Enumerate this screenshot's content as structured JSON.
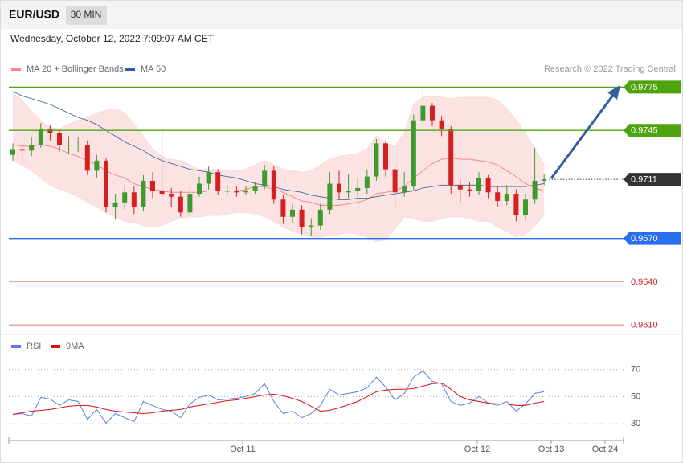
{
  "header": {
    "symbol": "EUR/USD",
    "timeframe": "30 MIN",
    "timestamp": "Wednesday, October 12, 2022 7:09:07 AM CET"
  },
  "chart_data": [
    {
      "type": "candlestick",
      "credit": "Research © 2022 Trading Central",
      "ylim": [
        0.9604,
        0.9802
      ],
      "up_color": "#3c9a2e",
      "down_color": "#d42020",
      "band_color": "#fbd9d9",
      "open": [
        0.9728,
        0.9732,
        0.9731,
        0.9735,
        0.9746,
        0.9743,
        0.9735,
        0.9735,
        0.9735,
        0.9717,
        0.9724,
        0.9692,
        0.9695,
        0.9702,
        0.9692,
        0.971,
        0.9703,
        0.9701,
        0.9699,
        0.9688,
        0.9701,
        0.9708,
        0.9716,
        0.9703,
        0.9703,
        0.9702,
        0.9703,
        0.9706,
        0.9717,
        0.9697,
        0.9685,
        0.969,
        0.9678,
        0.9679,
        0.969,
        0.9708,
        0.9702,
        0.9703,
        0.9705,
        0.9713,
        0.9736,
        0.9718,
        0.9702,
        0.9706,
        0.9752,
        0.9762,
        0.9752,
        0.9746,
        0.9707,
        0.9704,
        0.9703,
        0.9712,
        0.9702,
        0.9696,
        0.9701,
        0.9686,
        0.9697,
        0.971
      ],
      "high": [
        0.9736,
        0.9737,
        0.974,
        0.975,
        0.9749,
        0.9746,
        0.9741,
        0.974,
        0.9738,
        0.9728,
        0.9726,
        0.9701,
        0.9707,
        0.9706,
        0.9714,
        0.9716,
        0.9746,
        0.9705,
        0.9703,
        0.9706,
        0.9713,
        0.972,
        0.9718,
        0.9707,
        0.9706,
        0.9706,
        0.9709,
        0.9721,
        0.972,
        0.97,
        0.9694,
        0.9693,
        0.9684,
        0.9694,
        0.9716,
        0.9717,
        0.9715,
        0.9712,
        0.9718,
        0.9739,
        0.9738,
        0.9721,
        0.9716,
        0.9756,
        0.9775,
        0.9764,
        0.9755,
        0.9748,
        0.9711,
        0.9709,
        0.9716,
        0.9714,
        0.9706,
        0.9707,
        0.9704,
        0.9701,
        0.9733,
        0.9715
      ],
      "low": [
        0.9724,
        0.9722,
        0.9727,
        0.9733,
        0.9738,
        0.973,
        0.9729,
        0.973,
        0.9714,
        0.9712,
        0.9688,
        0.9683,
        0.969,
        0.9687,
        0.9689,
        0.9698,
        0.9697,
        0.9692,
        0.9685,
        0.9686,
        0.9699,
        0.9704,
        0.97,
        0.97,
        0.9699,
        0.97,
        0.9701,
        0.9704,
        0.9694,
        0.968,
        0.9681,
        0.9673,
        0.9672,
        0.9676,
        0.9687,
        0.9697,
        0.9698,
        0.9699,
        0.9701,
        0.971,
        0.9713,
        0.9691,
        0.9699,
        0.9703,
        0.9748,
        0.9748,
        0.9741,
        0.9701,
        0.9695,
        0.9699,
        0.97,
        0.9698,
        0.9692,
        0.9693,
        0.9682,
        0.9683,
        0.9694,
        0.9707
      ],
      "close": [
        0.9732,
        0.9731,
        0.9735,
        0.9746,
        0.9743,
        0.9735,
        0.9735,
        0.9735,
        0.9717,
        0.9724,
        0.9692,
        0.9695,
        0.9702,
        0.9692,
        0.971,
        0.9703,
        0.9701,
        0.9699,
        0.9688,
        0.9701,
        0.9708,
        0.9716,
        0.9703,
        0.9703,
        0.9702,
        0.9703,
        0.9706,
        0.9717,
        0.9697,
        0.9685,
        0.969,
        0.9678,
        0.9679,
        0.969,
        0.9708,
        0.9702,
        0.9703,
        0.9705,
        0.9713,
        0.9736,
        0.9718,
        0.9702,
        0.9706,
        0.9752,
        0.9762,
        0.9752,
        0.9746,
        0.9707,
        0.9704,
        0.9703,
        0.9712,
        0.9702,
        0.9696,
        0.9701,
        0.9686,
        0.9697,
        0.971,
        0.9711
      ],
      "series": [
        {
          "name": "MA 20 + Bollinger Bands",
          "color": "#f08a84",
          "values": [
            0.9735,
            0.9734,
            0.9734,
            0.9735,
            0.9734,
            0.9732,
            0.9729,
            0.9727,
            0.9724,
            0.9721,
            0.9717,
            0.9714,
            0.9712,
            0.9708,
            0.9706,
            0.9704,
            0.9703,
            0.9702,
            0.9702,
            0.9702,
            0.9702,
            0.9703,
            0.9703,
            0.9703,
            0.9703,
            0.9704,
            0.9706,
            0.9706,
            0.9704,
            0.9702,
            0.9699,
            0.9696,
            0.9695,
            0.9693,
            0.9693,
            0.9693,
            0.9694,
            0.9695,
            0.9697,
            0.9701,
            0.9702,
            0.9703,
            0.9706,
            0.9712,
            0.9717,
            0.9722,
            0.9725,
            0.9726,
            0.9725,
            0.9725,
            0.9724,
            0.9723,
            0.9721,
            0.9717,
            0.9713,
            0.9708,
            0.9705,
            0.9703
          ],
          "upper": [
            0.9771,
            0.9766,
            0.9758,
            0.9752,
            0.9747,
            0.9746,
            0.9749,
            0.9752,
            0.9754,
            0.9757,
            0.9759,
            0.976,
            0.9757,
            0.9749,
            0.9741,
            0.9732,
            0.9727,
            0.9725,
            0.9724,
            0.9721,
            0.9718,
            0.9718,
            0.9718,
            0.9717,
            0.9717,
            0.9718,
            0.9721,
            0.9724,
            0.9721,
            0.9718,
            0.9717,
            0.9716,
            0.9717,
            0.9721,
            0.9725,
            0.9727,
            0.9728,
            0.9729,
            0.9732,
            0.9741,
            0.9736,
            0.9734,
            0.9743,
            0.9763,
            0.9768,
            0.9769,
            0.9768,
            0.9767,
            0.9768,
            0.9768,
            0.9768,
            0.9768,
            0.9766,
            0.976,
            0.9752,
            0.9743,
            0.9732,
            0.9721
          ],
          "lower": [
            0.9724,
            0.9721,
            0.9717,
            0.9712,
            0.9707,
            0.9704,
            0.9702,
            0.9699,
            0.9695,
            0.9692,
            0.9688,
            0.9685,
            0.9682,
            0.9681,
            0.9679,
            0.9678,
            0.9679,
            0.9682,
            0.9684,
            0.9685,
            0.9685,
            0.9686,
            0.9686,
            0.9687,
            0.9688,
            0.9688,
            0.9687,
            0.9685,
            0.9682,
            0.9678,
            0.9675,
            0.9673,
            0.9671,
            0.9671,
            0.9672,
            0.9673,
            0.9674,
            0.9673,
            0.9671,
            0.9668,
            0.9669,
            0.9677,
            0.9685,
            0.9684,
            0.9682,
            0.9682,
            0.9684,
            0.9685,
            0.9685,
            0.9684,
            0.9682,
            0.9682,
            0.9678,
            0.9675,
            0.9671,
            0.9673,
            0.9679,
            0.9686
          ]
        },
        {
          "name": "MA 50",
          "color": "#2f5f9f",
          "values": [
            0.9772,
            0.9769,
            0.9767,
            0.9765,
            0.9763,
            0.976,
            0.9757,
            0.9754,
            0.9752,
            0.9749,
            0.9745,
            0.9741,
            0.9737,
            0.9734,
            0.9731,
            0.9727,
            0.9724,
            0.9722,
            0.972,
            0.9718,
            0.9717,
            0.9716,
            0.9714,
            0.9713,
            0.9712,
            0.971,
            0.9708,
            0.9707,
            0.9706,
            0.9704,
            0.9703,
            0.9702,
            0.97,
            0.9699,
            0.9698,
            0.9697,
            0.9697,
            0.9698,
            0.9698,
            0.9699,
            0.97,
            0.9701,
            0.9702,
            0.9703,
            0.9705,
            0.9706,
            0.9707,
            0.9707,
            0.9707,
            0.9707,
            0.9707,
            0.9706,
            0.9706,
            0.9706,
            0.9706,
            0.9706,
            0.9707,
            0.9708
          ]
        }
      ],
      "levels": [
        {
          "price": 0.9775,
          "color": "#4ea40f",
          "line": "solid",
          "tag": true
        },
        {
          "price": 0.9745,
          "color": "#4ea40f",
          "line": "solid",
          "tag": true
        },
        {
          "price": 0.9711,
          "color": "#333333",
          "line": "dotted",
          "tag": true
        },
        {
          "price": {
            "value": 0.967,
            "label": "0.9670"
          },
          "color": "#2a6ef0",
          "line": "solid",
          "tag": true
        },
        {
          "price": {
            "value": 0.964,
            "label": "0.9640"
          },
          "color": "#f4a0a0",
          "line": "solid",
          "tag": false
        },
        {
          "price": {
            "value": 0.961,
            "label": "0.9610"
          },
          "color": "#f4a0a0",
          "line": "solid",
          "tag": false
        }
      ]
    },
    {
      "type": "line",
      "ylim": [
        20,
        90
      ],
      "yticks": [
        70,
        50,
        30
      ],
      "grid": true,
      "xlabels": [
        "Oct 11",
        "Oct 12",
        "Oct 13",
        "Oct 24"
      ],
      "series": [
        {
          "name": "RSI",
          "color": "#5b80dc",
          "values": [
            36.9,
            37.5,
            35.7,
            49.4,
            48.2,
            43.5,
            47.6,
            46.4,
            33.3,
            40.5,
            30.4,
            37.5,
            34.5,
            31.5,
            46.4,
            43.5,
            40.5,
            39.3,
            34.5,
            44.6,
            49.4,
            51.2,
            47.6,
            48.2,
            48.8,
            50,
            52.4,
            59.5,
            46.4,
            37.5,
            39.3,
            34.5,
            37.5,
            43.5,
            55.4,
            51.2,
            52.4,
            53.6,
            56.5,
            64.3,
            57.1,
            47.6,
            52.4,
            64.3,
            69,
            61.3,
            59.5,
            46.4,
            43.5,
            45.2,
            50,
            45.2,
            43.5,
            46.4,
            39.3,
            44.6,
            52.4,
            53.6
          ]
        },
        {
          "name": "9MA",
          "color": "#e01010",
          "values": [
            36.9,
            38.1,
            39.3,
            39.9,
            40.5,
            41.7,
            42.9,
            43.5,
            43.5,
            42.3,
            40.5,
            39.3,
            38.7,
            38.1,
            37.5,
            38.1,
            39.3,
            39.9,
            40.5,
            42.3,
            43.5,
            44.6,
            45.8,
            47,
            47.6,
            48.8,
            50,
            51.2,
            51.8,
            50.6,
            48.8,
            46.4,
            42.9,
            39.3,
            39.9,
            41.7,
            44,
            46.4,
            50,
            53.6,
            54.8,
            55.4,
            55.4,
            56,
            57.7,
            59.5,
            60.1,
            55.4,
            50,
            47.6,
            46.4,
            45.2,
            44.6,
            44.6,
            43.5,
            43.5,
            45.2,
            46.4
          ]
        }
      ]
    }
  ]
}
